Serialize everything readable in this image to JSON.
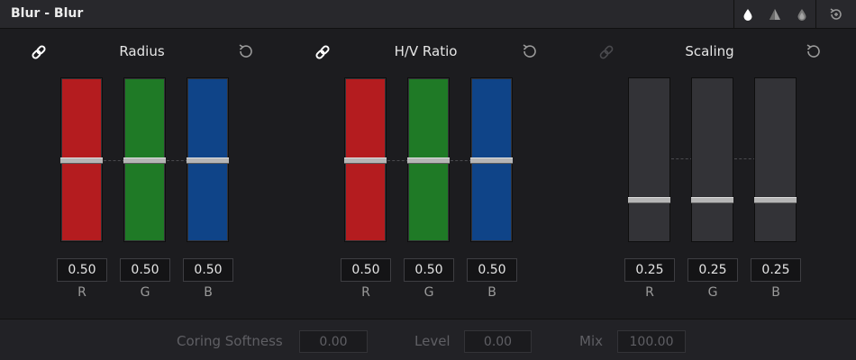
{
  "header": {
    "title": "Blur - Blur",
    "tools": [
      {
        "icon": "blur-drop-icon",
        "active": true
      },
      {
        "icon": "sharpen-triangle-icon",
        "active": false
      },
      {
        "icon": "mist-drop-icon",
        "active": false
      },
      {
        "icon": "reset-all-icon",
        "active": false
      }
    ]
  },
  "groups": [
    {
      "title": "Radius",
      "linked": true,
      "channels": [
        {
          "label": "R",
          "value": "0.50",
          "color": "#b41c1f"
        },
        {
          "label": "G",
          "value": "0.50",
          "color": "#1f7a26"
        },
        {
          "label": "B",
          "value": "0.50",
          "color": "#0f4488"
        }
      ]
    },
    {
      "title": "H/V Ratio",
      "linked": true,
      "channels": [
        {
          "label": "R",
          "value": "0.50",
          "color": "#b41c1f"
        },
        {
          "label": "G",
          "value": "0.50",
          "color": "#1f7a26"
        },
        {
          "label": "B",
          "value": "0.50",
          "color": "#0f4488"
        }
      ]
    },
    {
      "title": "Scaling",
      "linked": false,
      "channels": [
        {
          "label": "R",
          "value": "0.25",
          "color": "#333337"
        },
        {
          "label": "G",
          "value": "0.25",
          "color": "#333337"
        },
        {
          "label": "B",
          "value": "0.25",
          "color": "#333337"
        }
      ]
    }
  ],
  "footer": {
    "coring_softness": {
      "label": "Coring Softness",
      "value": "0.00"
    },
    "level": {
      "label": "Level",
      "value": "0.00"
    },
    "mix": {
      "label": "Mix",
      "value": "100.00"
    }
  }
}
